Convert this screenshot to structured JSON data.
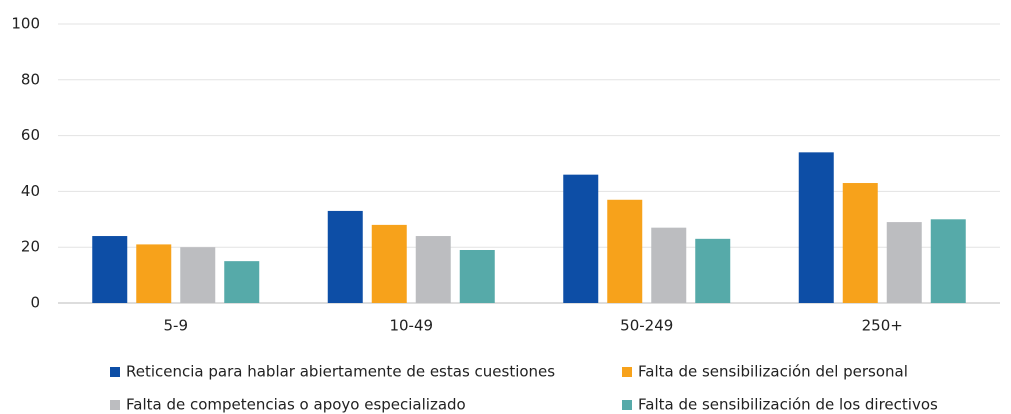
{
  "chart_data": {
    "type": "bar",
    "categories": [
      "5-9",
      "10-49",
      "50-249",
      "250+"
    ],
    "series": [
      {
        "name": "Reticencia para hablar abiertamente de estas cuestiones",
        "color": "#0d4ea6",
        "values": [
          24,
          33,
          46,
          54
        ]
      },
      {
        "name": "Falta de sensibilización del personal",
        "color": "#f7a21b",
        "values": [
          21,
          28,
          37,
          43
        ]
      },
      {
        "name": "Falta de competencias o apoyo especializado",
        "color": "#bcbdc0",
        "values": [
          20,
          24,
          27,
          29
        ]
      },
      {
        "name": "Falta de sensibilización de los directivos",
        "color": "#56aaa9",
        "values": [
          15,
          19,
          23,
          30
        ]
      }
    ],
    "ylim": [
      0,
      100
    ],
    "yticks": [
      0,
      20,
      40,
      60,
      80,
      100
    ],
    "grid": true,
    "legend": "bottom"
  }
}
